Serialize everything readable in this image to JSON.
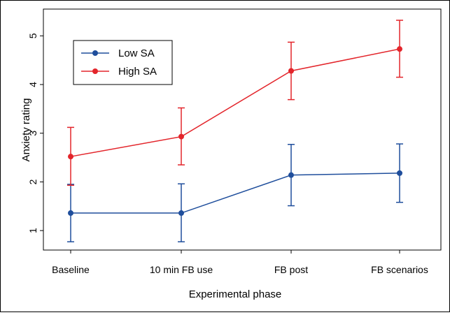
{
  "chart_data": {
    "type": "line",
    "title": "",
    "xlabel": "Experimental phase",
    "ylabel": "Anxiety rating",
    "categories": [
      "Baseline",
      "10 min FB use",
      "FB post",
      "FB scenarios"
    ],
    "ylim": [
      0.6,
      5.55
    ],
    "yticks": [
      1,
      2,
      3,
      4,
      5
    ],
    "grid": false,
    "legend_position": "top-left",
    "series": [
      {
        "name": "Low SA",
        "color": "#1f4e9c",
        "values": [
          1.36,
          1.36,
          2.14,
          2.18
        ],
        "error_low": [
          0.77,
          0.77,
          1.51,
          1.58
        ],
        "error_high": [
          1.95,
          1.96,
          2.77,
          2.78
        ]
      },
      {
        "name": "High SA",
        "color": "#e3252b",
        "values": [
          2.52,
          2.93,
          4.28,
          4.73
        ],
        "error_low": [
          1.93,
          2.35,
          3.69,
          4.15
        ],
        "error_high": [
          3.12,
          3.52,
          4.87,
          5.32
        ]
      }
    ]
  }
}
